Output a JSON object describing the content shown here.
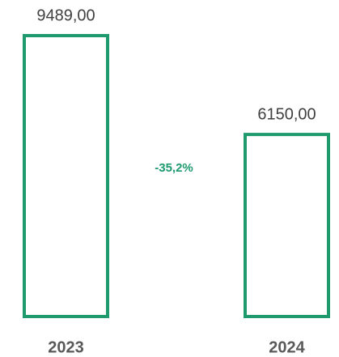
{
  "chart_data": {
    "type": "bar",
    "categories": [
      "2023",
      "2024"
    ],
    "values": [
      9489,
      6150
    ],
    "value_labels": [
      "9489,00",
      "6150,00"
    ],
    "color": "#1f9a6e",
    "annotation": "-35,2%"
  }
}
